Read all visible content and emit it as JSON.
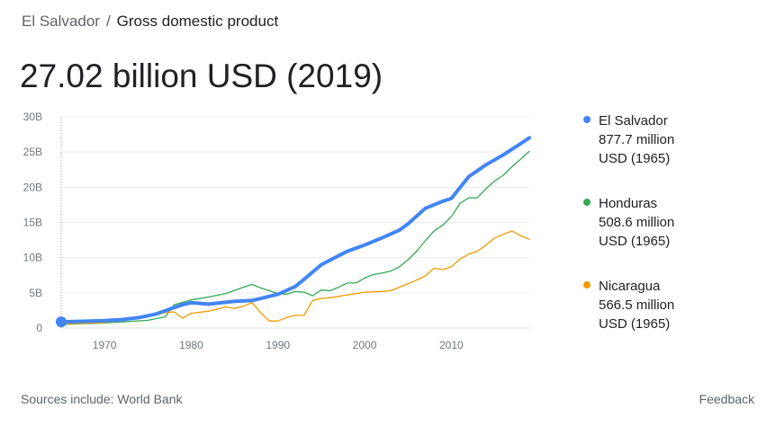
{
  "breadcrumb": {
    "country": "El Salvador",
    "separator": "/",
    "metric": "Gross domestic product"
  },
  "headline": "27.02 billion USD (2019)",
  "legend": [
    {
      "name": "El Salvador",
      "line2": "877.7 million",
      "line3": "USD (1965)",
      "color": "#4285f4"
    },
    {
      "name": "Honduras",
      "line2": "508.6 million",
      "line3": "USD (1965)",
      "color": "#34a853"
    },
    {
      "name": "Nicaragua",
      "line2": "566.5 million",
      "line3": "USD (1965)",
      "color": "#f29900"
    }
  ],
  "footer": {
    "sources": "Sources include: World Bank",
    "feedback": "Feedback"
  },
  "chart_data": {
    "type": "line",
    "xlim": [
      1965,
      2019
    ],
    "ylim": [
      0,
      30
    ],
    "x_ticks": [
      1970,
      1980,
      1990,
      2000,
      2010
    ],
    "y_ticks": [
      0,
      5,
      10,
      15,
      20,
      25,
      30
    ],
    "y_tick_labels": [
      "0",
      "5B",
      "10B",
      "15B",
      "20B",
      "25B",
      "30B"
    ],
    "grid": "horizontal",
    "legend_position": "right",
    "highlight_point": {
      "series": "El Salvador",
      "x": 1965,
      "y": 0.88
    },
    "series": [
      {
        "name": "El Salvador",
        "color": "#4285f4",
        "emphasis": true,
        "x": [
          1965,
          1967,
          1970,
          1972,
          1974,
          1976,
          1978,
          1979,
          1980,
          1982,
          1985,
          1987,
          1990,
          1992,
          1993,
          1995,
          1998,
          2000,
          2002,
          2004,
          2005,
          2007,
          2009,
          2010,
          2012,
          2014,
          2016,
          2018,
          2019
        ],
        "y": [
          0.88,
          0.95,
          1.05,
          1.2,
          1.5,
          2.0,
          2.9,
          3.3,
          3.6,
          3.4,
          3.8,
          3.9,
          4.8,
          5.9,
          6.9,
          9.0,
          10.9,
          11.8,
          12.8,
          13.9,
          14.8,
          17.0,
          18.0,
          18.4,
          21.5,
          23.2,
          24.6,
          26.2,
          27.02
        ]
      },
      {
        "name": "Honduras",
        "color": "#34a853",
        "emphasis": false,
        "x": [
          1965,
          1970,
          1975,
          1977,
          1978,
          1980,
          1982,
          1984,
          1986,
          1987,
          1988,
          1989,
          1990,
          1991,
          1992,
          1993,
          1994,
          1995,
          1996,
          1997,
          1998,
          1999,
          2000,
          2001,
          2002,
          2003,
          2004,
          2005,
          2006,
          2007,
          2008,
          2009,
          2010,
          2011,
          2012,
          2013,
          2014,
          2015,
          2016,
          2017,
          2018,
          2019
        ],
        "y": [
          0.51,
          0.72,
          1.1,
          1.6,
          3.3,
          4.0,
          4.4,
          4.9,
          5.8,
          6.2,
          5.7,
          5.3,
          4.9,
          4.8,
          5.2,
          5.1,
          4.6,
          5.4,
          5.3,
          5.8,
          6.4,
          6.4,
          7.1,
          7.6,
          7.8,
          8.1,
          8.7,
          9.7,
          10.9,
          12.4,
          13.8,
          14.6,
          15.8,
          17.7,
          18.5,
          18.5,
          19.8,
          20.9,
          21.7,
          22.9,
          24.0,
          25.1
        ]
      },
      {
        "name": "Nicaragua",
        "color": "#f29900",
        "emphasis": false,
        "x": [
          1965,
          1970,
          1975,
          1976,
          1977,
          1978,
          1979,
          1980,
          1982,
          1984,
          1985,
          1986,
          1987,
          1988,
          1989,
          1990,
          1991,
          1992,
          1993,
          1994,
          1995,
          1996,
          1998,
          2000,
          2002,
          2003,
          2004,
          2005,
          2006,
          2007,
          2008,
          2009,
          2010,
          2011,
          2012,
          2013,
          2014,
          2015,
          2016,
          2017,
          2018,
          2019
        ],
        "y": [
          0.57,
          0.78,
          1.6,
          1.9,
          2.2,
          2.3,
          1.4,
          2.1,
          2.4,
          3.0,
          2.8,
          3.1,
          3.6,
          2.2,
          1.0,
          1.0,
          1.5,
          1.8,
          1.8,
          3.9,
          4.2,
          4.3,
          4.7,
          5.1,
          5.2,
          5.3,
          5.8,
          6.3,
          6.8,
          7.4,
          8.5,
          8.3,
          8.7,
          9.8,
          10.5,
          10.9,
          11.8,
          12.8,
          13.3,
          13.8,
          13.1,
          12.6
        ]
      }
    ]
  }
}
